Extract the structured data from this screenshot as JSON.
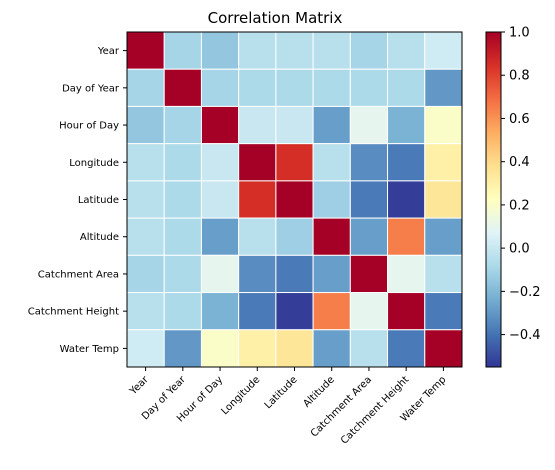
{
  "chart_data": {
    "type": "heatmap",
    "title": "Correlation Matrix",
    "xlabel": "",
    "ylabel": "",
    "labels": [
      "Year",
      "Day of Year",
      "Hour of Day",
      "Longitude",
      "Latitude",
      "Altitude",
      "Catchment Area",
      "Catchment Height",
      "Water Temp"
    ],
    "values": [
      [
        1.0,
        -0.1,
        -0.15,
        -0.05,
        -0.05,
        -0.05,
        -0.1,
        -0.05,
        0.02
      ],
      [
        -0.1,
        1.0,
        -0.1,
        -0.08,
        -0.08,
        -0.08,
        -0.08,
        -0.08,
        -0.3
      ],
      [
        -0.15,
        -0.1,
        1.0,
        0.0,
        0.0,
        -0.28,
        0.1,
        -0.22,
        0.2
      ],
      [
        -0.05,
        -0.08,
        0.0,
        1.0,
        0.85,
        -0.05,
        -0.33,
        -0.38,
        0.3
      ],
      [
        -0.05,
        -0.08,
        0.0,
        0.85,
        1.0,
        -0.12,
        -0.38,
        -0.53,
        0.35
      ],
      [
        -0.05,
        -0.08,
        -0.28,
        -0.05,
        -0.12,
        1.0,
        -0.28,
        0.65,
        -0.28
      ],
      [
        -0.1,
        -0.08,
        0.1,
        -0.33,
        -0.38,
        -0.28,
        1.0,
        0.1,
        -0.05
      ],
      [
        -0.05,
        -0.08,
        -0.22,
        -0.38,
        -0.53,
        0.65,
        0.1,
        1.0,
        -0.38
      ],
      [
        0.02,
        -0.3,
        0.2,
        0.3,
        0.35,
        -0.28,
        -0.05,
        -0.38,
        1.0
      ]
    ],
    "colormap": "RdYlBu_r",
    "vmin": -0.55,
    "vmax": 1.0,
    "grid": true,
    "colorbar": {
      "position": "right",
      "ticks": [
        -0.4,
        -0.2,
        0.0,
        0.2,
        0.4,
        0.6,
        0.8,
        1.0
      ],
      "tick_labels": [
        "−0.4",
        "−0.2",
        "0.0",
        "0.2",
        "0.4",
        "0.6",
        "0.8",
        "1.0"
      ]
    }
  }
}
